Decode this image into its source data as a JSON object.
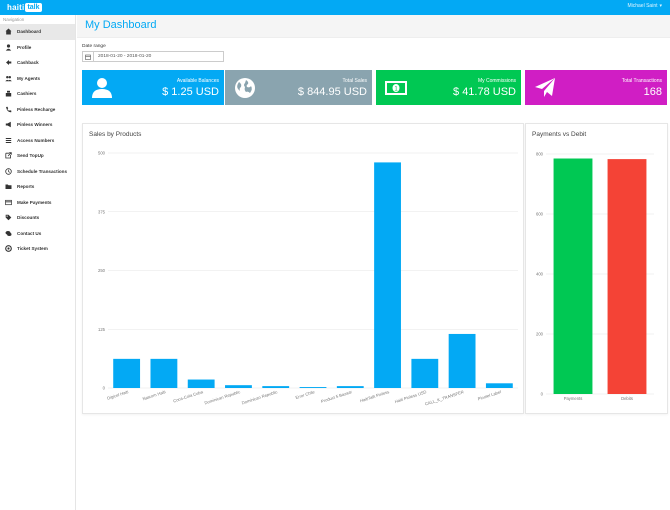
{
  "topbar": {
    "logo_part1": "haiti",
    "logo_part2": "talk",
    "user_name": "Michael Saint"
  },
  "sidebar": {
    "title": "Navigation",
    "items": [
      {
        "label": "Dashboard",
        "icon": "home-icon",
        "active": true
      },
      {
        "label": "Profile",
        "icon": "user-icon"
      },
      {
        "label": "Cashback",
        "icon": "back-arrow-icon"
      },
      {
        "label": "My Agents",
        "icon": "users-icon"
      },
      {
        "label": "Cashiers",
        "icon": "cashier-icon"
      },
      {
        "label": "Pinless Recharge",
        "icon": "phone-icon"
      },
      {
        "label": "Pinless Winners",
        "icon": "megaphone-icon"
      },
      {
        "label": "Access Numbers",
        "icon": "list-icon"
      },
      {
        "label": "Send TopUp",
        "icon": "send-icon"
      },
      {
        "label": "Schedule Transactions",
        "icon": "clock-icon"
      },
      {
        "label": "Reports",
        "icon": "folder-icon"
      },
      {
        "label": "Make Payments",
        "icon": "card-icon"
      },
      {
        "label": "Discounts",
        "icon": "tag-icon"
      },
      {
        "label": "Contact Us",
        "icon": "chat-icon"
      },
      {
        "label": "Ticket System",
        "icon": "lifebuoy-icon"
      }
    ]
  },
  "page": {
    "title": "My Dashboard",
    "date_label": "Date range",
    "date_value": "2018-01-20 - 2018-01-20"
  },
  "cards": [
    {
      "label": "Available Balances",
      "value": "$ 1.25 USD",
      "color": "#03a9f4",
      "icon": "user-icon"
    },
    {
      "label": "Total Sales",
      "value": "$ 844.95 USD",
      "color": "#8aa4af",
      "icon": "globe-icon"
    },
    {
      "label": "My Commissions",
      "value": "$ 41.78 USD",
      "color": "#00c853",
      "icon": "money-icon"
    },
    {
      "label": "Total Transactions",
      "value": "168",
      "color": "#d01ec4",
      "icon": "paper-plane-icon"
    }
  ],
  "chart_data": [
    {
      "type": "bar",
      "title": "Sales by Products",
      "categories": [
        "Digicel Haiti",
        "Natcom Haiti",
        "Coca-Cola Cuba",
        "Dominican Republic",
        "Dominican Republic",
        "Error Chile",
        "Product 5 Bazaar",
        "HaitiTalk Pinless",
        "Haiti Pinless USD",
        "CALL_K_TRANSFER",
        "Pinotel Label"
      ],
      "values": [
        62,
        62,
        18,
        6,
        4,
        2,
        4,
        480,
        62,
        115,
        10
      ],
      "ylim": [
        0,
        500
      ],
      "yticks": [
        "0",
        "125",
        "250",
        "375",
        "500"
      ],
      "color": "#03a9f4",
      "grid": true
    },
    {
      "type": "bar",
      "title": "Payments vs Debit",
      "categories": [
        "Payments",
        "Debits"
      ],
      "values": [
        785,
        783
      ],
      "colors": [
        "#00c853",
        "#f44336"
      ],
      "ylim": [
        0,
        800
      ],
      "yticks": [
        "0",
        "200",
        "400",
        "600",
        "800"
      ],
      "grid": true
    }
  ]
}
